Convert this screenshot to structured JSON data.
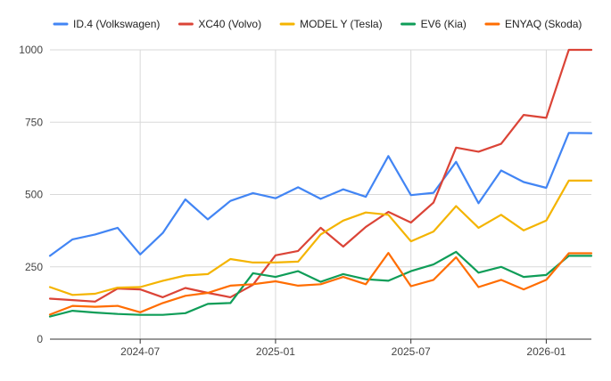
{
  "chart_data": {
    "type": "line",
    "title": "",
    "xlabel": "",
    "ylabel": "",
    "ylim": [
      0,
      1000
    ],
    "yticks": [
      0,
      250,
      500,
      750,
      1000
    ],
    "ytick_labels": [
      "0",
      "250",
      "500",
      "750",
      "1000"
    ],
    "x_start": "2024-03",
    "x_end": "2026-03",
    "xtick_labels": [
      "2024-07",
      "2025-01",
      "2025-07",
      "2026-01"
    ],
    "xtick_index": [
      4,
      10,
      16,
      22
    ],
    "legend_position": "top",
    "grid": true,
    "categories": [
      "2024-03",
      "2024-04",
      "2024-05",
      "2024-06",
      "2024-07",
      "2024-08",
      "2024-09",
      "2024-10",
      "2024-11",
      "2024-12",
      "2025-01",
      "2025-02",
      "2025-03",
      "2025-04",
      "2025-05",
      "2025-06",
      "2025-07",
      "2025-08",
      "2025-09",
      "2025-10",
      "2025-11",
      "2025-12",
      "2026-01",
      "2026-02",
      "2026-03"
    ],
    "series": [
      {
        "name": "ID.4 (Volkswagen)",
        "color": "#4285F4",
        "values": [
          288,
          345,
          362,
          385,
          293,
          367,
          483,
          414,
          478,
          505,
          487,
          525,
          485,
          518,
          492,
          633,
          498,
          506,
          613,
          470,
          583,
          543,
          523,
          713,
          712
        ]
      },
      {
        "name": "XC40 (Volvo)",
        "color": "#DB4437",
        "values": [
          140,
          135,
          130,
          175,
          172,
          145,
          177,
          160,
          145,
          188,
          290,
          305,
          385,
          320,
          388,
          440,
          403,
          472,
          662,
          648,
          675,
          775,
          765,
          1000,
          1000
        ]
      },
      {
        "name": "MODEL Y (Tesla)",
        "color": "#F4B400",
        "values": [
          180,
          153,
          157,
          178,
          180,
          202,
          220,
          225,
          277,
          265,
          265,
          268,
          362,
          410,
          438,
          430,
          338,
          372,
          460,
          385,
          430,
          376,
          410,
          548,
          548
        ]
      },
      {
        "name": "EV6 (Kia)",
        "color": "#0F9D58",
        "values": [
          78,
          98,
          92,
          87,
          84,
          84,
          90,
          122,
          125,
          228,
          215,
          235,
          198,
          225,
          207,
          202,
          235,
          258,
          302,
          230,
          250,
          215,
          222,
          288,
          288
        ]
      },
      {
        "name": "ENYAQ (Skoda)",
        "color": "#FF6D01",
        "values": [
          85,
          115,
          112,
          115,
          93,
          125,
          150,
          160,
          185,
          190,
          200,
          185,
          190,
          215,
          190,
          298,
          183,
          205,
          283,
          180,
          205,
          172,
          205,
          297,
          297
        ]
      }
    ]
  }
}
